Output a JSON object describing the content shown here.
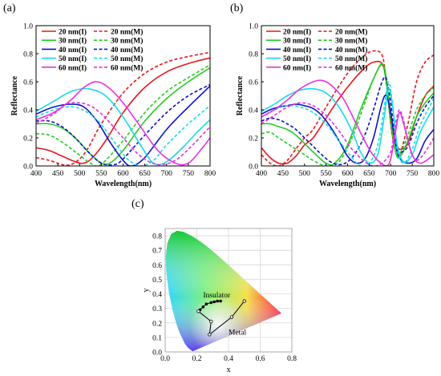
{
  "panel_labels": {
    "a": "(a)",
    "b": "(b)",
    "c": "(c)"
  },
  "colors": {
    "20nm": "#e8161b",
    "30nm": "#25c924",
    "40nm": "#0b12c9",
    "50nm": "#18dbe6",
    "60nm": "#e632e0"
  },
  "chart_data": [
    {
      "type": "line",
      "panel": "(a)",
      "xlabel": "Wavelength(nm)",
      "ylabel": "Reflectance",
      "xlim": [
        400,
        800
      ],
      "ylim": [
        0,
        1.0
      ],
      "xticks": [
        400,
        450,
        500,
        550,
        600,
        650,
        700,
        750,
        800
      ],
      "yticks": [
        0.0,
        0.2,
        0.4,
        0.6,
        0.8,
        1.0
      ],
      "legend_position": "top-right",
      "legend": [
        "20 nm(I)",
        "20 nm(M)",
        "30 nm(I)",
        "30 nm(M)",
        "40 nm(I)",
        "40 nm(M)",
        "50 nm(I)",
        "50 nm(M)",
        "60 nm(I)",
        "60 nm(M)"
      ],
      "series": [
        {
          "name": "20 nm(I)",
          "color": "#e8161b",
          "dash": false,
          "x": [
            400,
            430,
            460,
            490,
            510,
            530,
            560,
            600,
            650,
            700,
            750,
            800
          ],
          "y": [
            0.13,
            0.11,
            0.07,
            0.03,
            0.02,
            0.06,
            0.18,
            0.38,
            0.56,
            0.67,
            0.73,
            0.77
          ]
        },
        {
          "name": "20 nm(M)",
          "color": "#e8161b",
          "dash": true,
          "x": [
            400,
            430,
            460,
            480,
            500,
            520,
            550,
            600,
            650,
            700,
            750,
            800
          ],
          "y": [
            0.06,
            0.04,
            0.01,
            0.01,
            0.05,
            0.13,
            0.3,
            0.52,
            0.66,
            0.74,
            0.78,
            0.81
          ]
        },
        {
          "name": "30 nm(I)",
          "color": "#25c924",
          "dash": false,
          "x": [
            400,
            430,
            460,
            490,
            520,
            550,
            570,
            600,
            650,
            700,
            750,
            800
          ],
          "y": [
            0.3,
            0.3,
            0.27,
            0.2,
            0.1,
            0.02,
            0.02,
            0.11,
            0.32,
            0.48,
            0.6,
            0.7
          ]
        },
        {
          "name": "30 nm(M)",
          "color": "#25c924",
          "dash": true,
          "x": [
            400,
            430,
            460,
            490,
            520,
            540,
            560,
            600,
            650,
            700,
            750,
            800
          ],
          "y": [
            0.23,
            0.22,
            0.17,
            0.1,
            0.03,
            0.0,
            0.04,
            0.18,
            0.38,
            0.53,
            0.63,
            0.72
          ]
        },
        {
          "name": "40 nm(I)",
          "color": "#0b12c9",
          "dash": false,
          "x": [
            400,
            440,
            480,
            510,
            540,
            570,
            600,
            620,
            650,
            700,
            750,
            800
          ],
          "y": [
            0.37,
            0.42,
            0.44,
            0.42,
            0.32,
            0.17,
            0.04,
            0.0,
            0.06,
            0.26,
            0.42,
            0.57
          ]
        },
        {
          "name": "40 nm(M)",
          "color": "#0b12c9",
          "dash": true,
          "x": [
            400,
            430,
            460,
            490,
            520,
            550,
            580,
            600,
            650,
            700,
            750,
            800
          ],
          "y": [
            0.32,
            0.32,
            0.28,
            0.2,
            0.1,
            0.02,
            0.01,
            0.05,
            0.22,
            0.38,
            0.5,
            0.58
          ]
        },
        {
          "name": "50 nm(I)",
          "color": "#18dbe6",
          "dash": false,
          "x": [
            400,
            440,
            480,
            520,
            560,
            600,
            640,
            670,
            700,
            740,
            770,
            800
          ],
          "y": [
            0.39,
            0.46,
            0.53,
            0.55,
            0.5,
            0.35,
            0.15,
            0.02,
            0.03,
            0.14,
            0.24,
            0.33
          ]
        },
        {
          "name": "50 nm(M)",
          "color": "#18dbe6",
          "dash": true,
          "x": [
            400,
            440,
            470,
            500,
            540,
            580,
            610,
            640,
            670,
            700,
            750,
            800
          ],
          "y": [
            0.35,
            0.4,
            0.42,
            0.41,
            0.33,
            0.17,
            0.05,
            0.0,
            0.04,
            0.15,
            0.3,
            0.43
          ]
        },
        {
          "name": "60 nm(I)",
          "color": "#e632e0",
          "dash": false,
          "x": [
            400,
            440,
            480,
            510,
            540,
            570,
            600,
            640,
            680,
            720,
            750,
            780,
            800
          ],
          "y": [
            0.33,
            0.38,
            0.47,
            0.56,
            0.6,
            0.55,
            0.45,
            0.28,
            0.11,
            0.02,
            0.02,
            0.12,
            0.2
          ]
        },
        {
          "name": "60 nm(M)",
          "color": "#e632e0",
          "dash": true,
          "x": [
            400,
            440,
            470,
            500,
            530,
            560,
            600,
            640,
            680,
            720,
            760,
            800
          ],
          "y": [
            0.3,
            0.37,
            0.44,
            0.45,
            0.42,
            0.34,
            0.2,
            0.07,
            0.01,
            0.04,
            0.15,
            0.28
          ]
        }
      ]
    },
    {
      "type": "line",
      "panel": "(b)",
      "xlabel": "Wavelength(nm)",
      "ylabel": "Reflectance",
      "xlim": [
        400,
        800
      ],
      "ylim": [
        0,
        1.0
      ],
      "xticks": [
        400,
        450,
        500,
        550,
        600,
        650,
        700,
        750,
        800
      ],
      "yticks": [
        0.0,
        0.2,
        0.4,
        0.6,
        0.8,
        1.0
      ],
      "legend_position": "top-left",
      "legend": [
        "20 nm(I)",
        "20 nm(M)",
        "30 nm(I)",
        "30 nm(M)",
        "40 nm(I)",
        "40 nm(M)",
        "50 nm(I)",
        "50 nm(M)",
        "60 nm(I)",
        "60 nm(M)"
      ],
      "series": [
        {
          "name": "20 nm(I)",
          "color": "#e8161b",
          "dash": false,
          "x": [
            400,
            420,
            440,
            460,
            480,
            500,
            520,
            550,
            580,
            610,
            640,
            660,
            680,
            690,
            700,
            710,
            720,
            740,
            760,
            780,
            800
          ],
          "y": [
            0.13,
            0.06,
            0.02,
            0.02,
            0.07,
            0.15,
            0.2,
            0.34,
            0.48,
            0.6,
            0.7,
            0.74,
            0.73,
            0.6,
            0.35,
            0.2,
            0.12,
            0.16,
            0.35,
            0.5,
            0.57
          ]
        },
        {
          "name": "20 nm(M)",
          "color": "#e8161b",
          "dash": true,
          "x": [
            400,
            420,
            440,
            460,
            480,
            500,
            520,
            550,
            580,
            610,
            640,
            660,
            680,
            690,
            700,
            710,
            720,
            740,
            760,
            780,
            800
          ],
          "y": [
            0.08,
            0.02,
            0.0,
            0.04,
            0.12,
            0.2,
            0.26,
            0.42,
            0.57,
            0.7,
            0.79,
            0.82,
            0.79,
            0.6,
            0.3,
            0.12,
            0.07,
            0.3,
            0.6,
            0.74,
            0.79
          ]
        },
        {
          "name": "30 nm(I)",
          "color": "#25c924",
          "dash": false,
          "x": [
            400,
            420,
            440,
            460,
            480,
            500,
            520,
            550,
            570,
            600,
            630,
            660,
            680,
            690,
            700,
            710,
            720,
            740,
            760,
            780,
            800
          ],
          "y": [
            0.3,
            0.3,
            0.28,
            0.26,
            0.22,
            0.16,
            0.1,
            0.02,
            0.02,
            0.15,
            0.4,
            0.62,
            0.73,
            0.62,
            0.35,
            0.12,
            0.06,
            0.18,
            0.35,
            0.45,
            0.52
          ]
        },
        {
          "name": "30 nm(M)",
          "color": "#25c924",
          "dash": true,
          "x": [
            400,
            420,
            440,
            460,
            480,
            500,
            520,
            550,
            580,
            610,
            640,
            660,
            680,
            690,
            700,
            710,
            720,
            740,
            760,
            780,
            800
          ],
          "y": [
            0.23,
            0.24,
            0.2,
            0.16,
            0.12,
            0.08,
            0.04,
            0.0,
            0.03,
            0.2,
            0.45,
            0.62,
            0.72,
            0.58,
            0.3,
            0.12,
            0.08,
            0.22,
            0.4,
            0.5,
            0.56
          ]
        },
        {
          "name": "40 nm(I)",
          "color": "#0b12c9",
          "dash": false,
          "x": [
            400,
            420,
            440,
            460,
            480,
            500,
            520,
            540,
            560,
            580,
            600,
            620,
            640,
            660,
            680,
            690,
            700,
            710,
            720,
            740,
            760,
            780,
            800
          ],
          "y": [
            0.37,
            0.4,
            0.42,
            0.43,
            0.44,
            0.43,
            0.41,
            0.36,
            0.28,
            0.18,
            0.07,
            0.02,
            0.05,
            0.2,
            0.45,
            0.5,
            0.38,
            0.18,
            0.06,
            0.02,
            0.05,
            0.18,
            0.26
          ]
        },
        {
          "name": "40 nm(M)",
          "color": "#0b12c9",
          "dash": true,
          "x": [
            400,
            420,
            440,
            460,
            480,
            500,
            520,
            540,
            560,
            580,
            600,
            620,
            640,
            660,
            680,
            690,
            700,
            710,
            720,
            740,
            760,
            780,
            800
          ],
          "y": [
            0.32,
            0.34,
            0.33,
            0.3,
            0.26,
            0.2,
            0.14,
            0.08,
            0.03,
            0.01,
            0.03,
            0.1,
            0.22,
            0.4,
            0.6,
            0.62,
            0.45,
            0.2,
            0.1,
            0.14,
            0.3,
            0.42,
            0.5
          ]
        },
        {
          "name": "50 nm(I)",
          "color": "#18dbe6",
          "dash": false,
          "x": [
            400,
            430,
            460,
            490,
            520,
            550,
            580,
            610,
            630,
            650,
            670,
            685,
            695,
            705,
            715,
            730,
            750,
            770,
            800
          ],
          "y": [
            0.39,
            0.44,
            0.5,
            0.54,
            0.55,
            0.52,
            0.42,
            0.25,
            0.1,
            0.02,
            0.08,
            0.35,
            0.55,
            0.42,
            0.15,
            0.03,
            0.08,
            0.25,
            0.42
          ]
        },
        {
          "name": "50 nm(M)",
          "color": "#18dbe6",
          "dash": true,
          "x": [
            400,
            430,
            460,
            490,
            520,
            550,
            580,
            610,
            630,
            650,
            670,
            685,
            695,
            705,
            715,
            730,
            750,
            770,
            800
          ],
          "y": [
            0.35,
            0.4,
            0.43,
            0.42,
            0.38,
            0.3,
            0.18,
            0.06,
            0.0,
            0.02,
            0.15,
            0.42,
            0.6,
            0.42,
            0.12,
            0.02,
            0.12,
            0.3,
            0.48
          ]
        },
        {
          "name": "60 nm(I)",
          "color": "#e632e0",
          "dash": false,
          "x": [
            400,
            430,
            460,
            490,
            520,
            540,
            560,
            590,
            620,
            650,
            670,
            690,
            700,
            710,
            720,
            730,
            750,
            770,
            800
          ],
          "y": [
            0.35,
            0.4,
            0.47,
            0.55,
            0.6,
            0.61,
            0.58,
            0.48,
            0.3,
            0.12,
            0.04,
            0.0,
            0.05,
            0.22,
            0.38,
            0.3,
            0.08,
            0.02,
            0.08
          ]
        },
        {
          "name": "60 nm(M)",
          "color": "#e632e0",
          "dash": true,
          "x": [
            400,
            430,
            460,
            490,
            520,
            550,
            580,
            610,
            640,
            660,
            680,
            700,
            710,
            720,
            730,
            745,
            760,
            780,
            800
          ],
          "y": [
            0.3,
            0.36,
            0.42,
            0.45,
            0.43,
            0.36,
            0.25,
            0.12,
            0.03,
            0.0,
            0.02,
            0.1,
            0.28,
            0.4,
            0.32,
            0.12,
            0.04,
            0.1,
            0.2
          ]
        }
      ]
    },
    {
      "type": "scatter",
      "panel": "(c)",
      "xlabel": "x",
      "ylabel": "y",
      "xlim": [
        0,
        0.8
      ],
      "ylim": [
        0,
        0.85
      ],
      "xticks": [
        0.0,
        0.2,
        0.4,
        0.6,
        0.8
      ],
      "yticks": [
        0.0,
        0.1,
        0.2,
        0.3,
        0.4,
        0.5,
        0.6,
        0.7,
        0.8
      ],
      "grid": true,
      "annotations": [
        "Insulator",
        "Metal"
      ],
      "series": [
        {
          "name": "Insulator",
          "marker": "filled",
          "x": [
            0.22,
            0.24,
            0.26,
            0.29,
            0.31,
            0.33,
            0.35
          ],
          "y": [
            0.29,
            0.31,
            0.33,
            0.34,
            0.345,
            0.35,
            0.35
          ]
        },
        {
          "name": "Metal",
          "marker": "open",
          "x": [
            0.21,
            0.29,
            0.28,
            0.42,
            0.5
          ],
          "y": [
            0.28,
            0.21,
            0.12,
            0.24,
            0.35
          ]
        }
      ]
    }
  ]
}
